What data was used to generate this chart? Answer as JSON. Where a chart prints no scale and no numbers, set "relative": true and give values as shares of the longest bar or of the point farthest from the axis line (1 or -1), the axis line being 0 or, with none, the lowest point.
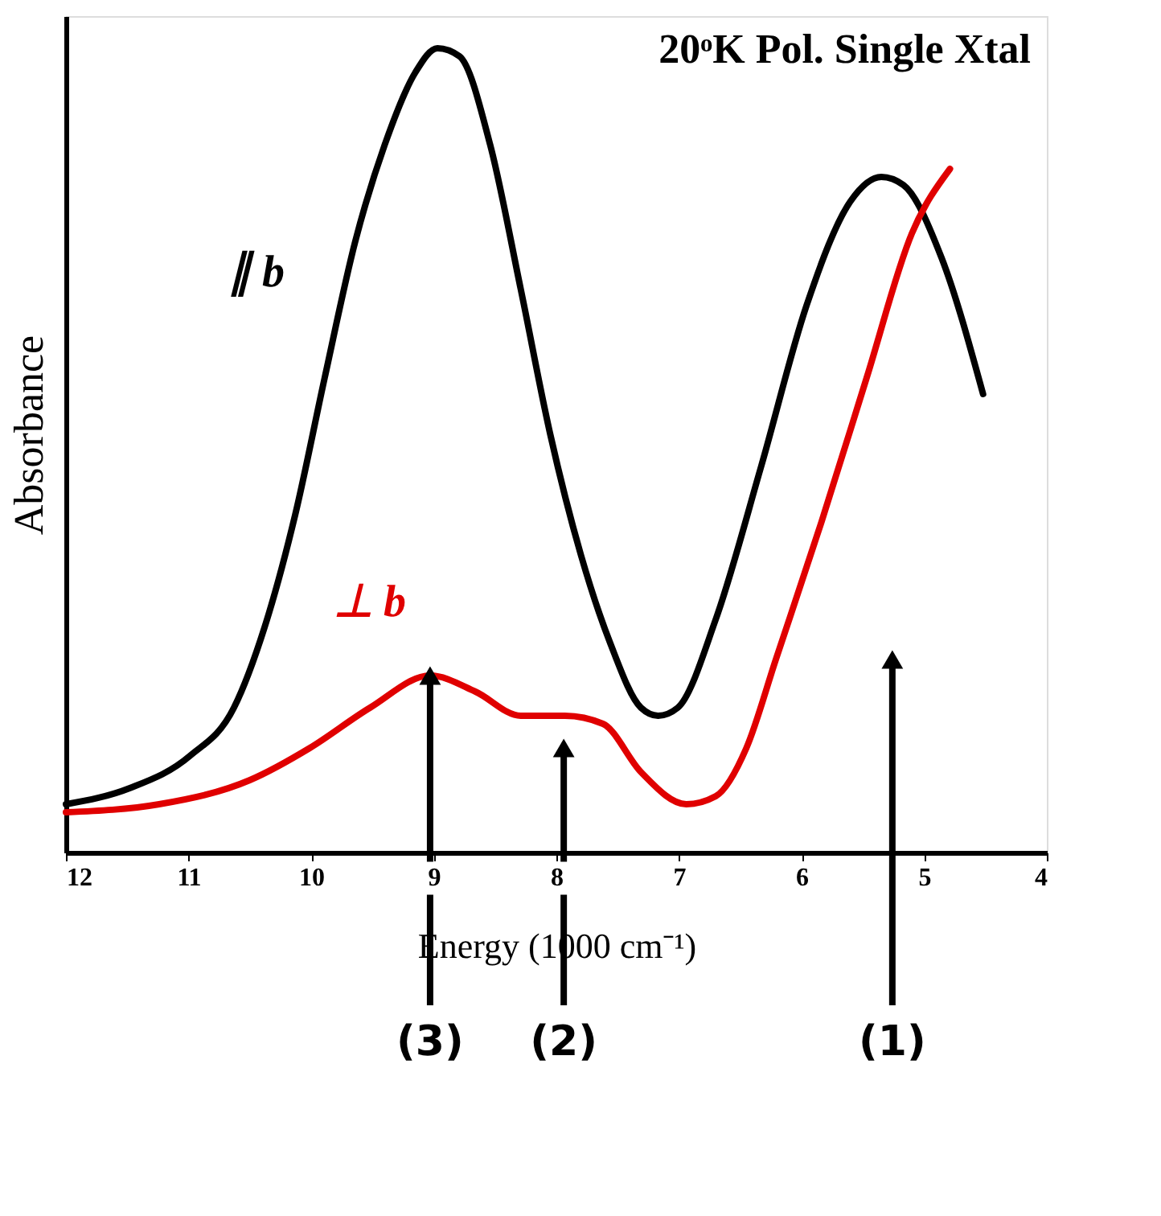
{
  "chart_data": {
    "type": "line",
    "title": "20ᵒK Pol. Single Xtal",
    "xlabel": "Energy (1000 cm⁻¹)",
    "ylabel": "Absorbance",
    "relative": true,
    "xlim": [
      12,
      4
    ],
    "xticks": [
      12,
      11,
      10,
      9,
      8,
      7,
      6,
      5,
      4
    ],
    "grid": false,
    "legend": false,
    "marker": "none",
    "line_style": "solid",
    "series": [
      {
        "name": "∥ b",
        "color": "#000000",
        "x": [
          12,
          11.48,
          10.99,
          10.63,
          10.38,
          10.13,
          9.89,
          9.64,
          9.4,
          9.15,
          8.97,
          8.79,
          8.54,
          8.29,
          8.05,
          7.8,
          7.56,
          7.31,
          7.17,
          7.01,
          6.7,
          6.33,
          5.96,
          5.6,
          5.35,
          5.17,
          4.86,
          4.52
        ],
        "values": [
          0.06,
          0.08,
          0.12,
          0.18,
          0.28,
          0.42,
          0.59,
          0.76,
          0.88,
          0.97,
          1.0,
          0.99,
          0.88,
          0.7,
          0.52,
          0.37,
          0.26,
          0.18,
          0.17,
          0.18,
          0.29,
          0.48,
          0.68,
          0.81,
          0.84,
          0.83,
          0.74,
          0.57
        ]
      },
      {
        "name": "⊥ b",
        "color": "#e00000",
        "x": [
          12,
          11.24,
          10.5,
          10.01,
          9.52,
          9.03,
          8.66,
          8.29,
          7.93,
          7.62,
          7.31,
          6.94,
          6.7,
          6.45,
          6.21,
          5.84,
          5.47,
          5.1,
          4.79
        ],
        "values": [
          0.05,
          0.06,
          0.09,
          0.13,
          0.18,
          0.22,
          0.2,
          0.17,
          0.17,
          0.16,
          0.1,
          0.06,
          0.07,
          0.13,
          0.24,
          0.41,
          0.59,
          0.77,
          0.85
        ]
      }
    ],
    "annotations": [
      {
        "text": "(3)",
        "x": 9.03,
        "y": 0.22
      },
      {
        "text": "(2)",
        "x": 7.94,
        "y": 0.13
      },
      {
        "text": "(1)",
        "x": 5.26,
        "y": 0.24
      }
    ]
  }
}
